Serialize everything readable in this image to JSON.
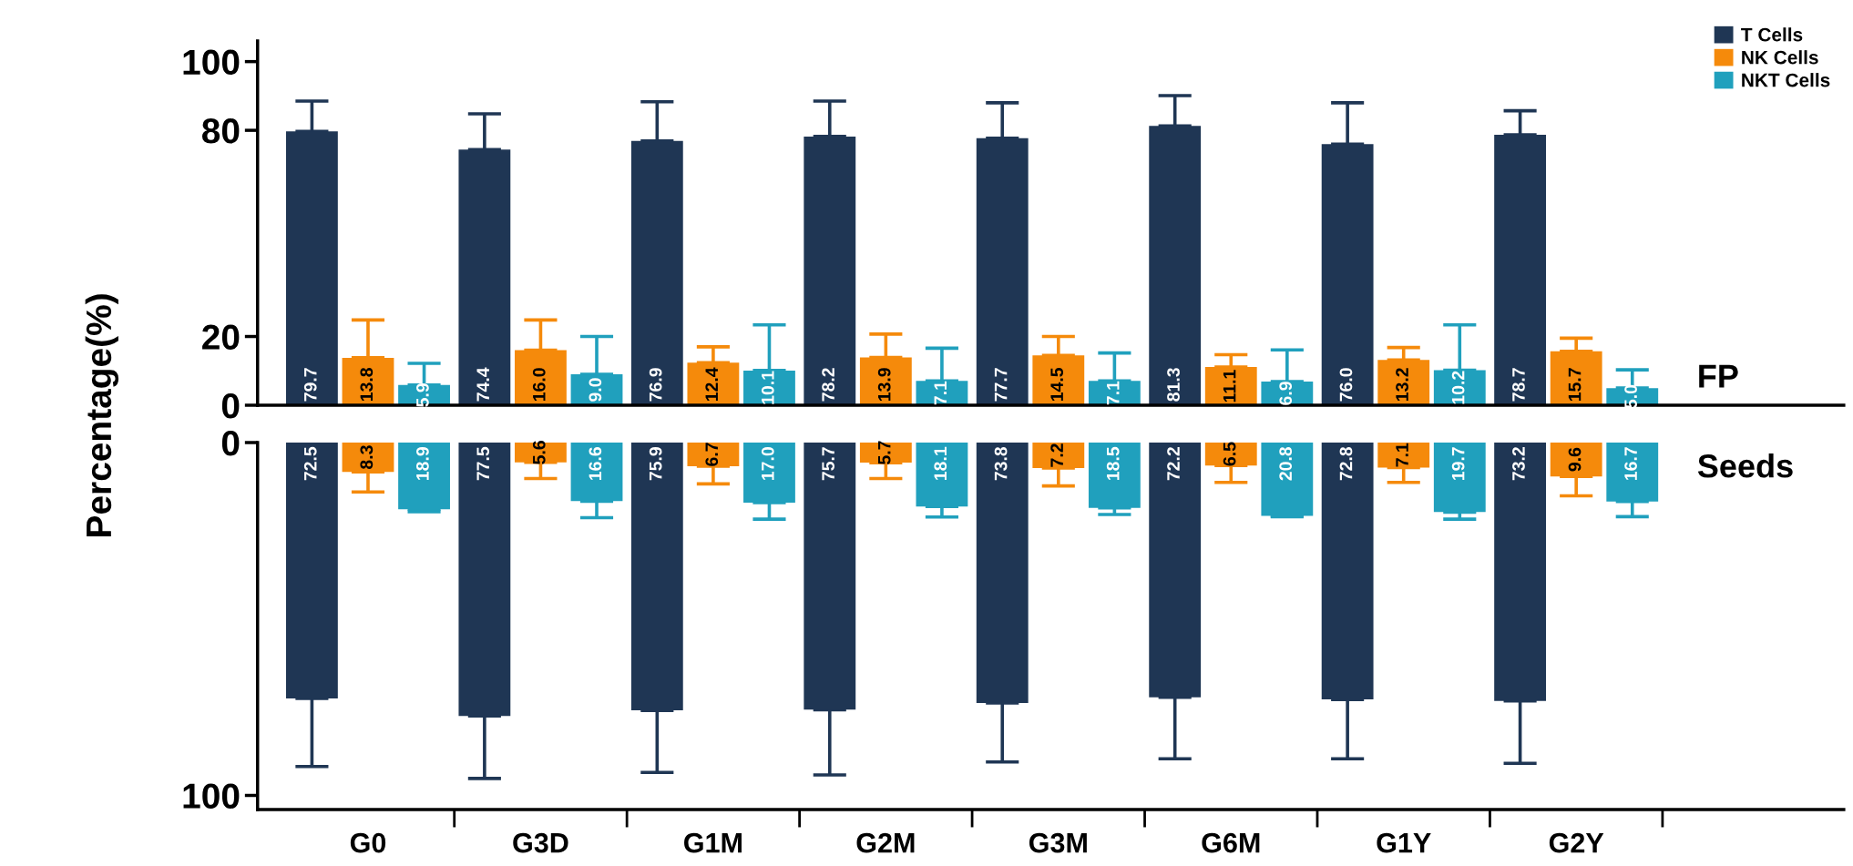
{
  "chart_data": [
    {
      "type": "bar",
      "annotations": [
        "FP"
      ],
      "ylabel": "Percentage(%)",
      "categories": [
        null,
        null,
        null,
        null,
        null,
        null,
        null,
        null
      ],
      "series": [
        {
          "name": "T Cells",
          "color": "#1f3654",
          "values": [
            79.7,
            74.4,
            76.9,
            78.2,
            77.7,
            81.3,
            76.0,
            78.7
          ],
          "value_labels": [
            "79.7",
            "74.4",
            "76.9",
            "78.2",
            "77.7",
            "81.3",
            "76.0",
            "78.7"
          ],
          "errors": [
            [
              79.7,
              88.5
            ],
            [
              74.4,
              84.8
            ],
            [
              76.9,
              88.3
            ],
            [
              78.2,
              88.5
            ],
            [
              77.7,
              88.0
            ],
            [
              81.3,
              90.1
            ],
            [
              76.0,
              88.0
            ],
            [
              78.7,
              85.7
            ]
          ]
        },
        {
          "name": "NK Cells",
          "color": "#f58a0b",
          "values": [
            13.8,
            16.0,
            12.4,
            13.9,
            14.5,
            11.1,
            13.2,
            15.7
          ],
          "value_labels": [
            "13.8",
            "16.0",
            "12.4",
            "13.9",
            "14.5",
            "11.1",
            "13.2",
            "15.7"
          ],
          "errors": [
            [
              13.8,
              24.8
            ],
            [
              16.0,
              24.8
            ],
            [
              12.4,
              17.0
            ],
            [
              13.9,
              20.7
            ],
            [
              14.5,
              20.0
            ],
            [
              11.1,
              14.7
            ],
            [
              13.2,
              16.8
            ],
            [
              15.7,
              19.5
            ]
          ]
        },
        {
          "name": "NKT Cells",
          "color": "#20a0bd",
          "values": [
            5.9,
            9.0,
            10.1,
            7.1,
            7.1,
            6.9,
            10.2,
            5.0
          ],
          "value_labels": [
            "5.9",
            "9.0",
            "10.1",
            "7.1",
            "7.1",
            "6.9",
            "10.2",
            "5.0"
          ],
          "errors": [
            [
              5.9,
              12.2
            ],
            [
              9.0,
              20.0
            ],
            [
              10.1,
              23.4
            ],
            [
              7.1,
              16.6
            ],
            [
              7.1,
              15.2
            ],
            [
              6.9,
              16.1
            ],
            [
              10.2,
              23.4
            ],
            [
              5.0,
              10.3
            ]
          ]
        }
      ],
      "ylim": [
        0,
        106
      ],
      "yticks": [
        0,
        20,
        80,
        100
      ],
      "tick_labels": "y",
      "legend": "top right",
      "grid": false
    },
    {
      "type": "bar",
      "annotations": [
        "Seeds"
      ],
      "categories": [
        "G0",
        "G3D",
        "G1M",
        "G2M",
        "G3M",
        "G6M",
        "G1Y",
        "G2Y"
      ],
      "series": [
        {
          "color": "#1f3654",
          "values": [
            72.5,
            77.5,
            75.9,
            75.7,
            73.8,
            72.2,
            72.8,
            73.2
          ],
          "value_labels": [
            "72.5",
            "77.5",
            "75.9",
            "75.7",
            "73.8",
            "72.2",
            "72.8",
            "73.2"
          ],
          "errors": [
            [
              72.5,
              91.8
            ],
            [
              77.5,
              95.2
            ],
            [
              75.9,
              93.5
            ],
            [
              75.7,
              94.2
            ],
            [
              73.8,
              90.5
            ],
            [
              72.2,
              89.6
            ],
            [
              72.8,
              89.6
            ],
            [
              73.2,
              90.9
            ]
          ]
        },
        {
          "color": "#f58a0b",
          "values": [
            8.3,
            5.6,
            6.7,
            5.7,
            7.2,
            6.5,
            7.1,
            9.6
          ],
          "value_labels": [
            "8.3",
            "5.6",
            "6.7",
            "5.7",
            "7.2",
            "6.5",
            "7.1",
            "9.6"
          ],
          "errors": [
            [
              8.3,
              14.0
            ],
            [
              5.6,
              10.2
            ],
            [
              6.7,
              11.7
            ],
            [
              5.7,
              10.2
            ],
            [
              7.2,
              12.3
            ],
            [
              6.5,
              11.3
            ],
            [
              7.1,
              11.3
            ],
            [
              9.6,
              15.1
            ]
          ]
        },
        {
          "color": "#20a0bd",
          "values": [
            18.9,
            16.6,
            17.0,
            18.1,
            18.5,
            20.8,
            19.7,
            16.7
          ],
          "value_labels": [
            "18.9",
            "16.6",
            "17.0",
            "18.1",
            "18.5",
            "20.8",
            "19.7",
            "16.7"
          ],
          "errors": [
            [
              18.9,
              19.6
            ],
            [
              16.6,
              21.3
            ],
            [
              17.0,
              21.7
            ],
            [
              18.1,
              21.1
            ],
            [
              18.5,
              20.4
            ],
            [
              20.8,
              21.0
            ],
            [
              19.7,
              21.7
            ],
            [
              16.7,
              21.0
            ]
          ]
        }
      ],
      "ylim": [
        104,
        0
      ],
      "yticks": [
        0,
        100
      ],
      "grid": false
    }
  ]
}
